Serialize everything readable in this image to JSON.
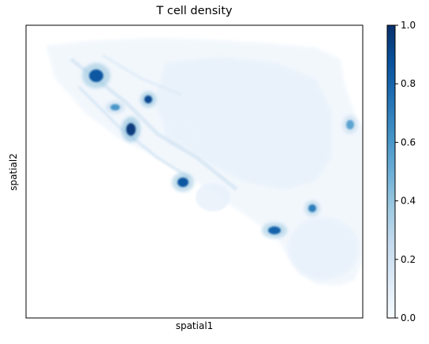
{
  "chart_data": {
    "type": "heatmap",
    "title": "T cell density",
    "xlabel": "spatial1",
    "ylabel": "spatial2",
    "colormap": "Blues",
    "colorbar": {
      "range": [
        0.0,
        1.0
      ],
      "ticks": [
        {
          "value": 0.0,
          "label": "0.0"
        },
        {
          "value": 0.2,
          "label": "0.2"
        },
        {
          "value": 0.4,
          "label": "0.4"
        },
        {
          "value": 0.6,
          "label": "0.6"
        },
        {
          "value": 0.8,
          "label": "0.8"
        },
        {
          "value": 1.0,
          "label": "1.0"
        }
      ]
    },
    "axis_ticks": false,
    "grid": false,
    "hotspots": [
      {
        "value": 0.85
      },
      {
        "value": 0.9
      },
      {
        "value": 0.95
      },
      {
        "value": 0.85
      },
      {
        "value": 0.8
      },
      {
        "value": 0.7
      },
      {
        "value": 0.6
      },
      {
        "value": 0.55
      }
    ]
  }
}
